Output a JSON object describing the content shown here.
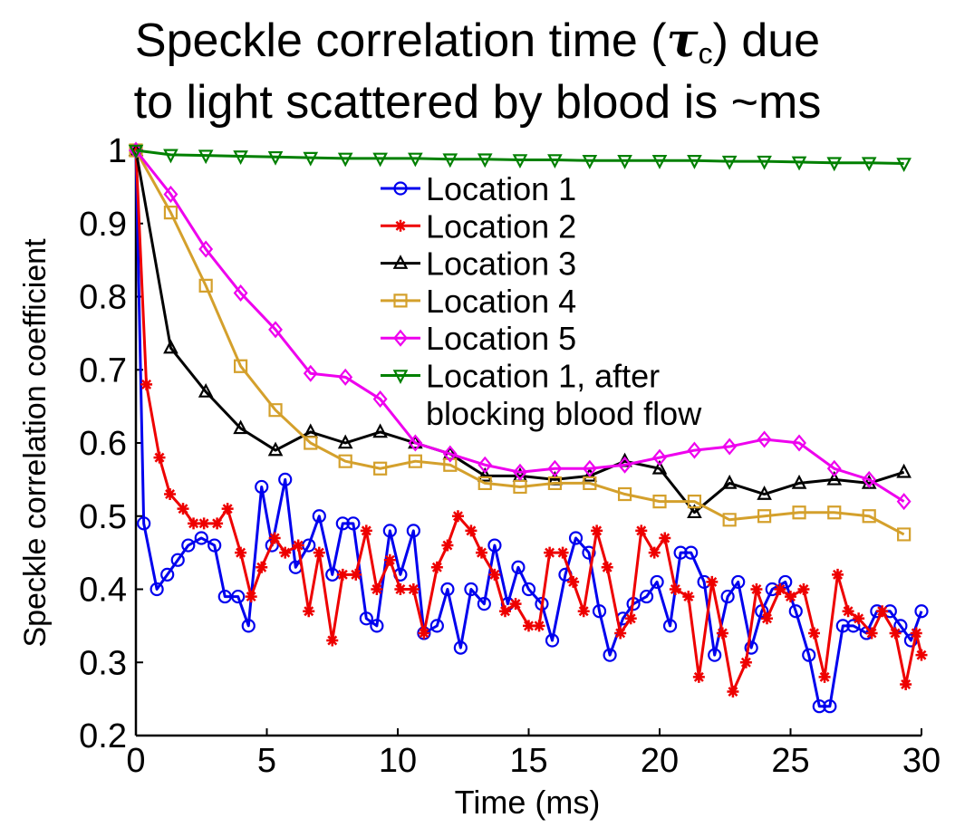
{
  "chart_data": {
    "type": "line",
    "title": [
      "Speckle correlation time (",
      "τ",
      "c",
      ") due",
      "to light scattered by blood is ~ms"
    ],
    "xlabel": "Time (ms)",
    "ylabel": "Speckle correlation coefficient",
    "xlim": [
      0,
      30
    ],
    "ylim": [
      0.2,
      1
    ],
    "xticks": [
      0,
      5,
      10,
      15,
      20,
      25,
      30
    ],
    "yticks": [
      0.2,
      0.3,
      0.4,
      0.5,
      0.6,
      0.7,
      0.8,
      0.9,
      1
    ],
    "legend": "top",
    "series": [
      {
        "name": [
          "Location 1"
        ],
        "color": "#0000ee",
        "marker": "circle",
        "x": [
          0,
          0.3,
          0.8,
          1.2,
          1.6,
          2.0,
          2.5,
          3.0,
          3.4,
          3.9,
          4.3,
          4.8,
          5.2,
          5.7,
          6.1,
          6.6,
          7.0,
          7.5,
          7.9,
          8.3,
          8.8,
          9.2,
          9.7,
          10.1,
          10.6,
          11.0,
          11.5,
          11.9,
          12.4,
          12.8,
          13.3,
          13.7,
          14.2,
          14.6,
          15.0,
          15.5,
          15.9,
          16.4,
          16.8,
          17.3,
          17.7,
          18.1,
          18.6,
          19.0,
          19.5,
          19.9,
          20.4,
          20.8,
          21.2,
          21.7,
          22.1,
          22.6,
          23.0,
          23.5,
          23.9,
          24.3,
          24.8,
          25.2,
          25.7,
          26.1,
          26.5,
          27.0,
          27.4,
          27.9,
          28.3,
          28.8,
          29.2,
          29.6,
          30.0
        ],
        "values": [
          1,
          0.49,
          0.4,
          0.42,
          0.44,
          0.46,
          0.47,
          0.46,
          0.39,
          0.39,
          0.35,
          0.54,
          0.46,
          0.55,
          0.43,
          0.46,
          0.5,
          0.42,
          0.49,
          0.49,
          0.36,
          0.35,
          0.48,
          0.42,
          0.48,
          0.34,
          0.35,
          0.4,
          0.32,
          0.4,
          0.38,
          0.46,
          0.38,
          0.43,
          0.4,
          0.38,
          0.33,
          0.42,
          0.47,
          0.45,
          0.37,
          0.31,
          0.36,
          0.38,
          0.39,
          0.41,
          0.35,
          0.45,
          0.45,
          0.41,
          0.31,
          0.39,
          0.41,
          0.32,
          0.37,
          0.4,
          0.41,
          0.37,
          0.31,
          0.24,
          0.24,
          0.35,
          0.35,
          0.34,
          0.37,
          0.37,
          0.35,
          0.33,
          0.37
        ]
      },
      {
        "name": [
          "Location 2"
        ],
        "color": "#ee0000",
        "marker": "star",
        "x": [
          0,
          0.4,
          0.9,
          1.3,
          1.8,
          2.2,
          2.6,
          3.1,
          3.5,
          4.0,
          4.4,
          4.8,
          5.3,
          5.7,
          6.2,
          6.6,
          7.0,
          7.5,
          7.9,
          8.4,
          8.8,
          9.2,
          9.7,
          10.1,
          10.6,
          11.0,
          11.5,
          11.9,
          12.3,
          12.8,
          13.2,
          13.7,
          14.1,
          14.5,
          15.0,
          15.4,
          15.8,
          16.3,
          16.7,
          17.1,
          17.6,
          18.0,
          18.5,
          18.9,
          19.3,
          19.8,
          20.2,
          20.6,
          21.1,
          21.5,
          22.0,
          22.4,
          22.8,
          23.3,
          23.7,
          24.1,
          24.6,
          25.0,
          25.5,
          25.9,
          26.3,
          26.8,
          27.2,
          27.6,
          28.1,
          28.5,
          29.0,
          29.4,
          29.8,
          30.0
        ],
        "values": [
          1,
          0.68,
          0.58,
          0.53,
          0.51,
          0.49,
          0.49,
          0.49,
          0.51,
          0.45,
          0.39,
          0.43,
          0.47,
          0.45,
          0.46,
          0.37,
          0.45,
          0.33,
          0.42,
          0.42,
          0.48,
          0.4,
          0.44,
          0.4,
          0.4,
          0.34,
          0.43,
          0.46,
          0.5,
          0.48,
          0.45,
          0.42,
          0.37,
          0.38,
          0.35,
          0.35,
          0.45,
          0.45,
          0.41,
          0.37,
          0.48,
          0.43,
          0.34,
          0.36,
          0.48,
          0.45,
          0.47,
          0.4,
          0.39,
          0.28,
          0.41,
          0.34,
          0.26,
          0.3,
          0.4,
          0.36,
          0.4,
          0.39,
          0.4,
          0.34,
          0.28,
          0.42,
          0.37,
          0.36,
          0.34,
          0.37,
          0.34,
          0.27,
          0.34,
          0.31
        ]
      },
      {
        "name": [
          "Location 3"
        ],
        "color": "#000000",
        "marker": "triangle-up",
        "x": [
          0,
          1.33,
          2.67,
          4,
          5.33,
          6.67,
          8,
          9.33,
          10.67,
          12,
          13.33,
          14.67,
          16,
          17.33,
          18.67,
          20,
          21.33,
          22.67,
          24,
          25.33,
          26.67,
          28,
          29.33
        ],
        "values": [
          1,
          0.73,
          0.67,
          0.62,
          0.59,
          0.615,
          0.6,
          0.615,
          0.6,
          0.585,
          0.555,
          0.555,
          0.55,
          0.555,
          0.575,
          0.565,
          0.505,
          0.545,
          0.53,
          0.545,
          0.55,
          0.545,
          0.56
        ]
      },
      {
        "name": [
          "Location 4"
        ],
        "color": "#d4a02c",
        "marker": "square",
        "x": [
          0,
          1.33,
          2.67,
          4,
          5.33,
          6.67,
          8,
          9.33,
          10.67,
          12,
          13.33,
          14.67,
          16,
          17.33,
          18.67,
          20,
          21.33,
          22.67,
          24,
          25.33,
          26.67,
          28,
          29.33
        ],
        "values": [
          1,
          0.915,
          0.815,
          0.705,
          0.645,
          0.6,
          0.575,
          0.565,
          0.575,
          0.57,
          0.545,
          0.54,
          0.545,
          0.545,
          0.53,
          0.52,
          0.52,
          0.495,
          0.5,
          0.505,
          0.505,
          0.5,
          0.475
        ]
      },
      {
        "name": [
          "Location 5"
        ],
        "color": "#ee00ee",
        "marker": "diamond",
        "x": [
          0,
          1.33,
          2.67,
          4,
          5.33,
          6.67,
          8,
          9.33,
          10.67,
          12,
          13.33,
          14.67,
          16,
          17.33,
          18.67,
          20,
          21.33,
          22.67,
          24,
          25.33,
          26.67,
          28,
          29.33
        ],
        "values": [
          1,
          0.94,
          0.865,
          0.805,
          0.755,
          0.695,
          0.69,
          0.66,
          0.6,
          0.585,
          0.57,
          0.56,
          0.565,
          0.565,
          0.57,
          0.58,
          0.59,
          0.595,
          0.605,
          0.6,
          0.565,
          0.55,
          0.52
        ]
      },
      {
        "name": [
          "Location 1, after",
          "blocking blood flow"
        ],
        "color": "#008000",
        "marker": "triangle-down",
        "x": [
          0,
          1.33,
          2.67,
          4,
          5.33,
          6.67,
          8,
          9.33,
          10.67,
          12,
          13.33,
          14.67,
          16,
          17.33,
          18.67,
          20,
          21.33,
          22.67,
          24,
          25.33,
          26.67,
          28,
          29.33
        ],
        "values": [
          1,
          0.994,
          0.993,
          0.992,
          0.991,
          0.99,
          0.989,
          0.989,
          0.989,
          0.988,
          0.988,
          0.987,
          0.987,
          0.986,
          0.986,
          0.986,
          0.986,
          0.985,
          0.985,
          0.984,
          0.983,
          0.983,
          0.982
        ]
      }
    ]
  }
}
